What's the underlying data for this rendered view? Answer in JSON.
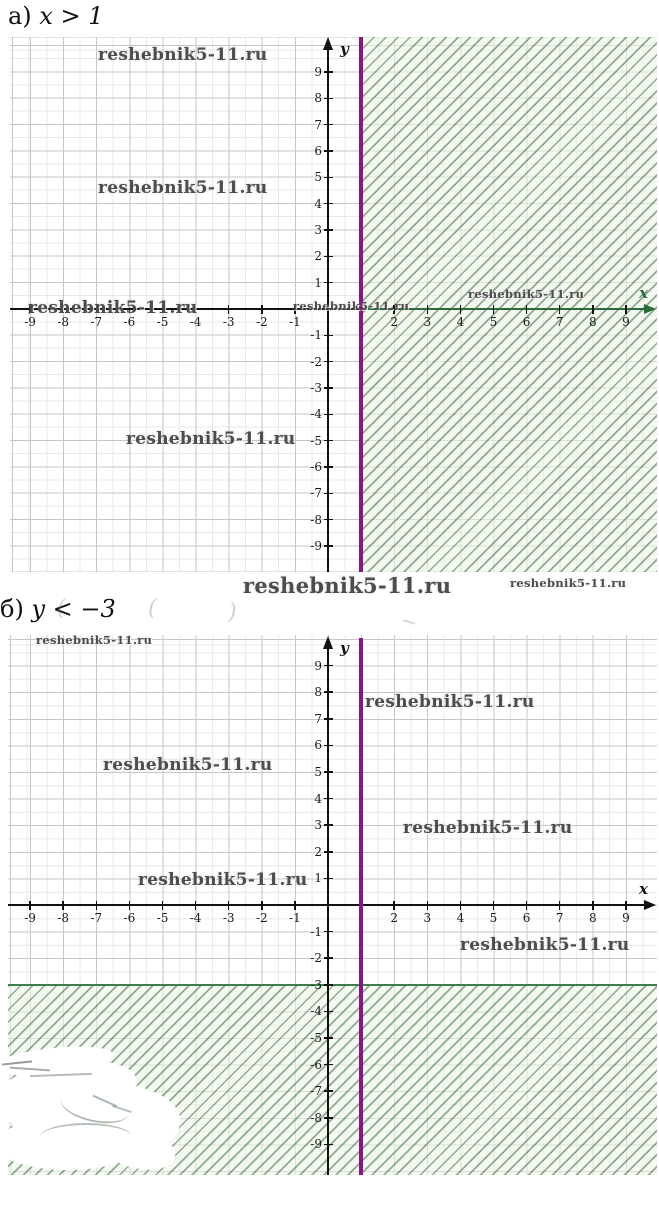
{
  "watermark": {
    "text": "reshebnik5-11.ru"
  },
  "section_a": {
    "label_prefix": "а)",
    "expression": "x > 1",
    "axis": {
      "x_label": "x",
      "y_label": "y"
    },
    "x_ticks": [
      "-9",
      "-8",
      "-7",
      "-6",
      "-5",
      "-4",
      "-3",
      "-2",
      "-1",
      "2",
      "3",
      "4",
      "5",
      "6",
      "7",
      "8",
      "9"
    ],
    "y_ticks": [
      "9",
      "8",
      "7",
      "6",
      "5",
      "4",
      "3",
      "2",
      "1",
      "-1",
      "-2",
      "-3",
      "-4",
      "-5",
      "-6",
      "-7",
      "-8",
      "-9"
    ]
  },
  "section_b": {
    "label_prefix": "б)",
    "expression": "y < −3",
    "axis": {
      "x_label": "x",
      "y_label": "y"
    },
    "x_ticks": [
      "-9",
      "-8",
      "-7",
      "-6",
      "-5",
      "-4",
      "-3",
      "-2",
      "-1",
      "2",
      "3",
      "4",
      "5",
      "6",
      "7",
      "8",
      "9"
    ],
    "y_ticks": [
      "9",
      "8",
      "7",
      "6",
      "5",
      "4",
      "3",
      "2",
      "1",
      "-1",
      "-2",
      "-3",
      "-4",
      "-5",
      "-6",
      "-7",
      "-8",
      "-9"
    ]
  },
  "colors": {
    "boundary_line": "#8b1486",
    "hatch_line": "#4a7a52",
    "hatch_background": "#eef5ea",
    "hatch_edge_green": "#3f7d4a",
    "axis_black": "#111111",
    "axis_green_segment": "#2e6b3c",
    "grid_major": "#c6c6c6",
    "grid_minor": "#e9e9e9",
    "watermark_gray": "#4d4d4d"
  },
  "chart_data": [
    {
      "type": "area",
      "title": "а) x > 1",
      "description": "Coordinate plane showing the solution of the inequality x > 1: a vertical purple boundary line at x = 1 with the half-plane to its right shaded by green diagonal hatching.",
      "boundary": {
        "orientation": "vertical",
        "value": 1,
        "color": "#8b1486"
      },
      "shaded_region": "x > 1",
      "xlabel": "x",
      "ylabel": "y",
      "xlim": [
        -9.7,
        10
      ],
      "ylim": [
        -10.3,
        10.3
      ],
      "x_tick_labels": [
        -9,
        -8,
        -7,
        -6,
        -5,
        -4,
        -3,
        -2,
        -1,
        2,
        3,
        4,
        5,
        6,
        7,
        8,
        9
      ],
      "y_tick_labels": [
        9,
        8,
        7,
        6,
        5,
        4,
        3,
        2,
        1,
        -1,
        -2,
        -3,
        -4,
        -5,
        -6,
        -7,
        -8,
        -9
      ],
      "grid": true,
      "legend": false
    },
    {
      "type": "area",
      "title": "б) y < −3",
      "description": "Coordinate plane showing the solution of the inequality y < −3: the half-plane below the horizontal level y = −3 is shaded by green diagonal hatching; a vertical purple line at x = 1 is also drawn.",
      "boundary": {
        "orientation": "horizontal",
        "value": -3,
        "color": "#3f7d4a"
      },
      "extra_line": {
        "orientation": "vertical",
        "value": 1,
        "color": "#8b1486"
      },
      "shaded_region": "y < -3",
      "xlabel": "x",
      "ylabel": "y",
      "xlim": [
        -9.7,
        10
      ],
      "ylim": [
        -10.2,
        10.2
      ],
      "x_tick_labels": [
        -9,
        -8,
        -7,
        -6,
        -5,
        -4,
        -3,
        -2,
        -1,
        2,
        3,
        4,
        5,
        6,
        7,
        8,
        9
      ],
      "y_tick_labels": [
        9,
        8,
        7,
        6,
        5,
        4,
        3,
        2,
        1,
        -1,
        -2,
        -3,
        -4,
        -5,
        -6,
        -7,
        -8,
        -9
      ],
      "grid": true,
      "legend": false
    }
  ]
}
